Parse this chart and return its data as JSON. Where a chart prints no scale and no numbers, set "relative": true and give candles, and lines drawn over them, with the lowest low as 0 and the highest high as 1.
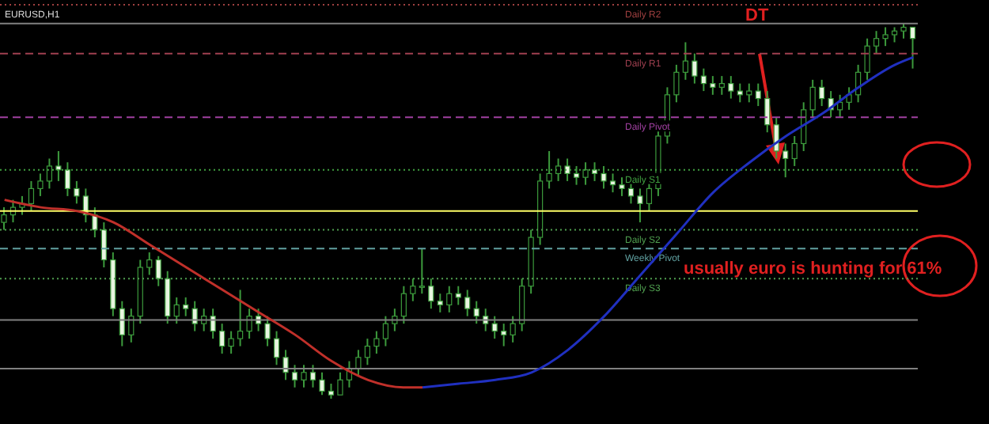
{
  "chart_data": {
    "type": "candlestick",
    "title": "EURUSD,H1",
    "relative": true,
    "color": "#3c9a3c",
    "categories": [
      null,
      null,
      null,
      null,
      null,
      null,
      null,
      null,
      null,
      null,
      null,
      null,
      null,
      null,
      null,
      null,
      null,
      null,
      null,
      null,
      null,
      null,
      null,
      null,
      null,
      null,
      null,
      null,
      null,
      null,
      null,
      null,
      null,
      null,
      null,
      null,
      null,
      null,
      null,
      null,
      null,
      null,
      null,
      null,
      null,
      null,
      null,
      null,
      null,
      null,
      null,
      null,
      null,
      null,
      null,
      null,
      null,
      null,
      null,
      null,
      null,
      null,
      null,
      null,
      null,
      null,
      null,
      null,
      null,
      null,
      null,
      null,
      null,
      null,
      null,
      null,
      null,
      null,
      null,
      null,
      null,
      null,
      null,
      null,
      null,
      null,
      null,
      null,
      null,
      null,
      null,
      null,
      null,
      null,
      null,
      null,
      null,
      null,
      null,
      null,
      null
    ],
    "ohlc": [
      [
        0.47,
        0.51,
        0.45,
        0.49
      ],
      [
        0.49,
        0.53,
        0.47,
        0.51
      ],
      [
        0.51,
        0.54,
        0.49,
        0.52
      ],
      [
        0.52,
        0.58,
        0.5,
        0.56
      ],
      [
        0.56,
        0.6,
        0.54,
        0.58
      ],
      [
        0.58,
        0.64,
        0.56,
        0.62
      ],
      [
        0.62,
        0.66,
        0.58,
        0.61
      ],
      [
        0.61,
        0.63,
        0.54,
        0.56
      ],
      [
        0.56,
        0.58,
        0.52,
        0.54
      ],
      [
        0.54,
        0.56,
        0.47,
        0.49
      ],
      [
        0.49,
        0.51,
        0.43,
        0.45
      ],
      [
        0.45,
        0.47,
        0.35,
        0.37
      ],
      [
        0.37,
        0.39,
        0.22,
        0.24
      ],
      [
        0.24,
        0.26,
        0.14,
        0.17
      ],
      [
        0.17,
        0.24,
        0.15,
        0.22
      ],
      [
        0.22,
        0.37,
        0.2,
        0.35
      ],
      [
        0.35,
        0.39,
        0.33,
        0.37
      ],
      [
        0.37,
        0.38,
        0.3,
        0.32
      ],
      [
        0.32,
        0.34,
        0.2,
        0.22
      ],
      [
        0.22,
        0.27,
        0.2,
        0.25
      ],
      [
        0.25,
        0.27,
        0.22,
        0.24
      ],
      [
        0.24,
        0.26,
        0.18,
        0.2
      ],
      [
        0.2,
        0.24,
        0.18,
        0.22
      ],
      [
        0.22,
        0.24,
        0.16,
        0.18
      ],
      [
        0.18,
        0.2,
        0.12,
        0.14
      ],
      [
        0.14,
        0.18,
        0.12,
        0.16
      ],
      [
        0.16,
        0.29,
        0.14,
        0.18
      ],
      [
        0.18,
        0.24,
        0.16,
        0.22
      ],
      [
        0.22,
        0.24,
        0.18,
        0.2
      ],
      [
        0.2,
        0.22,
        0.14,
        0.16
      ],
      [
        0.16,
        0.18,
        0.09,
        0.11
      ],
      [
        0.11,
        0.13,
        0.05,
        0.07
      ],
      [
        0.07,
        0.09,
        0.03,
        0.05
      ],
      [
        0.05,
        0.09,
        0.03,
        0.07
      ],
      [
        0.07,
        0.09,
        0.03,
        0.05
      ],
      [
        0.05,
        0.07,
        0.01,
        0.02
      ],
      [
        0.02,
        0.04,
        0.0,
        0.01
      ],
      [
        0.01,
        0.07,
        0.01,
        0.05
      ],
      [
        0.05,
        0.1,
        0.03,
        0.08
      ],
      [
        0.08,
        0.13,
        0.06,
        0.11
      ],
      [
        0.11,
        0.16,
        0.09,
        0.14
      ],
      [
        0.14,
        0.18,
        0.12,
        0.16
      ],
      [
        0.16,
        0.22,
        0.14,
        0.2
      ],
      [
        0.2,
        0.24,
        0.18,
        0.22
      ],
      [
        0.22,
        0.3,
        0.2,
        0.28
      ],
      [
        0.28,
        0.32,
        0.26,
        0.3
      ],
      [
        0.3,
        0.4,
        0.28,
        0.3
      ],
      [
        0.3,
        0.32,
        0.24,
        0.26
      ],
      [
        0.26,
        0.28,
        0.23,
        0.25
      ],
      [
        0.25,
        0.3,
        0.23,
        0.28
      ],
      [
        0.28,
        0.3,
        0.25,
        0.27
      ],
      [
        0.27,
        0.29,
        0.22,
        0.24
      ],
      [
        0.24,
        0.26,
        0.2,
        0.22
      ],
      [
        0.22,
        0.24,
        0.18,
        0.2
      ],
      [
        0.2,
        0.22,
        0.16,
        0.18
      ],
      [
        0.18,
        0.2,
        0.14,
        0.17
      ],
      [
        0.17,
        0.22,
        0.15,
        0.2
      ],
      [
        0.2,
        0.32,
        0.18,
        0.3
      ],
      [
        0.3,
        0.45,
        0.28,
        0.43
      ],
      [
        0.43,
        0.6,
        0.41,
        0.58
      ],
      [
        0.58,
        0.66,
        0.56,
        0.6
      ],
      [
        0.6,
        0.64,
        0.58,
        0.62
      ],
      [
        0.62,
        0.64,
        0.58,
        0.6
      ],
      [
        0.6,
        0.62,
        0.57,
        0.59
      ],
      [
        0.59,
        0.63,
        0.57,
        0.61
      ],
      [
        0.61,
        0.63,
        0.58,
        0.6
      ],
      [
        0.6,
        0.62,
        0.56,
        0.58
      ],
      [
        0.58,
        0.6,
        0.55,
        0.57
      ],
      [
        0.57,
        0.59,
        0.54,
        0.56
      ],
      [
        0.56,
        0.58,
        0.52,
        0.54
      ],
      [
        0.54,
        0.56,
        0.47,
        0.52
      ],
      [
        0.52,
        0.58,
        0.5,
        0.56
      ],
      [
        0.56,
        0.72,
        0.54,
        0.7
      ],
      [
        0.7,
        0.83,
        0.68,
        0.81
      ],
      [
        0.81,
        0.89,
        0.79,
        0.87
      ],
      [
        0.87,
        0.95,
        0.85,
        0.9
      ],
      [
        0.9,
        0.92,
        0.84,
        0.86
      ],
      [
        0.86,
        0.88,
        0.82,
        0.84
      ],
      [
        0.84,
        0.86,
        0.81,
        0.83
      ],
      [
        0.83,
        0.86,
        0.81,
        0.84
      ],
      [
        0.84,
        0.86,
        0.8,
        0.82
      ],
      [
        0.82,
        0.84,
        0.79,
        0.81
      ],
      [
        0.81,
        0.84,
        0.79,
        0.82
      ],
      [
        0.82,
        0.84,
        0.78,
        0.8
      ],
      [
        0.8,
        0.82,
        0.71,
        0.73
      ],
      [
        0.73,
        0.75,
        0.64,
        0.66
      ],
      [
        0.66,
        0.68,
        0.59,
        0.64
      ],
      [
        0.64,
        0.7,
        0.62,
        0.68
      ],
      [
        0.68,
        0.79,
        0.66,
        0.77
      ],
      [
        0.77,
        0.85,
        0.75,
        0.83
      ],
      [
        0.83,
        0.85,
        0.78,
        0.8
      ],
      [
        0.8,
        0.82,
        0.75,
        0.77
      ],
      [
        0.77,
        0.81,
        0.75,
        0.79
      ],
      [
        0.79,
        0.83,
        0.77,
        0.81
      ],
      [
        0.81,
        0.89,
        0.79,
        0.87
      ],
      [
        0.87,
        0.96,
        0.85,
        0.94
      ],
      [
        0.94,
        0.98,
        0.92,
        0.96
      ],
      [
        0.96,
        0.99,
        0.94,
        0.97
      ],
      [
        0.97,
        0.99,
        0.95,
        0.98
      ],
      [
        0.98,
        1.0,
        0.96,
        0.99
      ],
      [
        0.99,
        0.99,
        0.88,
        0.96
      ]
    ],
    "series": [
      {
        "type": "line",
        "color": "#c0302a",
        "values": [
          0.53,
          null,
          null,
          null,
          0.51,
          null,
          null,
          null,
          0.5,
          null,
          null,
          null,
          0.47,
          null,
          null,
          null,
          0.41,
          null,
          null,
          null,
          0.35,
          null,
          null,
          null,
          0.29,
          null,
          null,
          null,
          0.23,
          null,
          null,
          null,
          0.17,
          null,
          null,
          null,
          0.1,
          null,
          null,
          null,
          0.05,
          null,
          null,
          null,
          0.03,
          null,
          0.03,
          null,
          null,
          null,
          null,
          null,
          null,
          null,
          null,
          null,
          null,
          null,
          null,
          null,
          null,
          null,
          null,
          null,
          null,
          null,
          null,
          null,
          null,
          null,
          null,
          null,
          null,
          null,
          null,
          null,
          null,
          null,
          null,
          null,
          null,
          null,
          null,
          null,
          null,
          null,
          null,
          null,
          null,
          null,
          null,
          null,
          null,
          null,
          null,
          null,
          null,
          null,
          null,
          null,
          null
        ]
      },
      {
        "type": "line",
        "color": "#2030c0",
        "values": [
          null,
          null,
          null,
          null,
          null,
          null,
          null,
          null,
          null,
          null,
          null,
          null,
          null,
          null,
          null,
          null,
          null,
          null,
          null,
          null,
          null,
          null,
          null,
          null,
          null,
          null,
          null,
          null,
          null,
          null,
          null,
          null,
          null,
          null,
          null,
          null,
          null,
          null,
          null,
          null,
          null,
          null,
          null,
          null,
          null,
          null,
          0.03,
          null,
          null,
          null,
          0.04,
          null,
          null,
          null,
          0.05,
          null,
          null,
          null,
          0.07,
          null,
          null,
          null,
          0.13,
          null,
          null,
          null,
          0.22,
          null,
          null,
          null,
          0.33,
          null,
          null,
          null,
          0.44,
          null,
          null,
          null,
          0.55,
          null,
          null,
          null,
          0.63,
          null,
          null,
          null,
          0.7,
          null,
          null,
          null,
          0.76,
          null,
          null,
          null,
          0.83,
          null,
          null,
          null,
          0.89,
          null,
          0.91
        ]
      }
    ],
    "ref_lines": [
      {
        "axis": "y",
        "value": 1.05,
        "label": "Daily R2",
        "color": "#a04040",
        "line_style": "dotted"
      },
      {
        "axis": "y",
        "value": 1.0,
        "color": "#808080"
      },
      {
        "axis": "y",
        "value": 0.92,
        "label": "Daily R1",
        "color": "#a04050",
        "line_style": "dashed"
      },
      {
        "axis": "y",
        "value": 0.75,
        "label": "Daily Pivot",
        "color": "#a040a0",
        "line_style": "dashed"
      },
      {
        "axis": "y",
        "value": 0.61,
        "label": "Daily S1",
        "color": "#40a040",
        "line_style": "dotted"
      },
      {
        "axis": "y",
        "value": 0.5,
        "color": "#ffff66"
      },
      {
        "axis": "y",
        "value": 0.45,
        "label": "Daily S2",
        "color": "#50a050",
        "line_style": "dotted"
      },
      {
        "axis": "y",
        "value": 0.4,
        "label": "Weekly Pivot",
        "color": "#60a0a0",
        "line_style": "dashed"
      },
      {
        "axis": "y",
        "value": 0.32,
        "label": "Daily S3",
        "color": "#50a050",
        "line_style": "dotted"
      },
      {
        "axis": "y",
        "value": 0.21,
        "color": "#808080"
      },
      {
        "axis": "y",
        "value": 0.08,
        "color": "#808080"
      }
    ],
    "annotations": [
      "DT",
      "usually euro is hunting for 61%"
    ]
  }
}
